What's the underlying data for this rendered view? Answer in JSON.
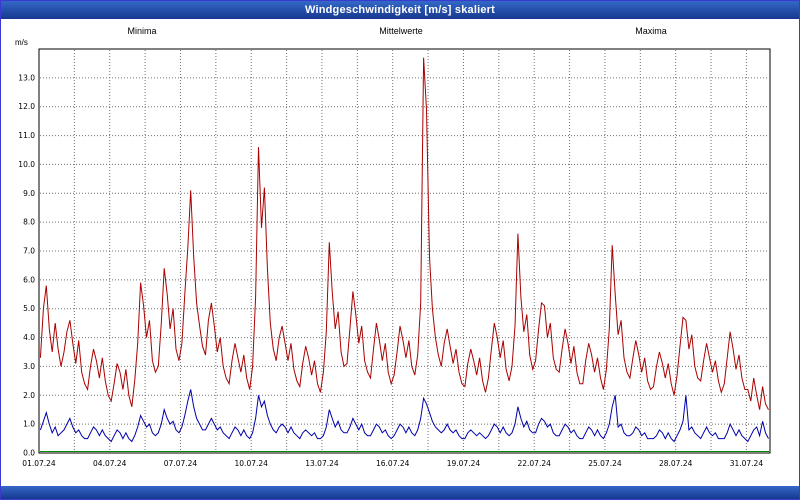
{
  "window": {
    "title": "Windgeschwindigkeit [m/s] skaliert"
  },
  "colors": {
    "titlebar": "#16388e",
    "maxima_line": "#aa0000",
    "mittelwerte_line": "#0000aa",
    "minima_line": "#008800",
    "grid": "#707070",
    "plot_border": "#000000"
  },
  "chart_data": {
    "type": "line",
    "title": "Windgeschwindigkeit [m/s] skaliert",
    "ylabel": "m/s",
    "ylim": [
      0,
      14
    ],
    "ytick_step": 1,
    "ytick_max": 13,
    "grid": true,
    "x_range_days": 31,
    "minor_grid_days": 1.5,
    "samples_per_day": 8,
    "xtick_days": [
      0,
      3,
      6,
      9,
      12,
      15,
      18,
      21,
      24,
      27,
      30
    ],
    "xtick_labels": [
      "01.07.24",
      "04.07.24",
      "07.07.24",
      "10.07.24",
      "13.07.24",
      "16.07.24",
      "19.07.24",
      "22.07.24",
      "25.07.24",
      "28.07.24",
      "31.07.24"
    ],
    "legend": [
      {
        "label": "Minima",
        "color": "#00a544"
      },
      {
        "label": "Mittelwerte",
        "color": "#0000bb"
      },
      {
        "label": "Maxima",
        "color": "#bb0000"
      }
    ],
    "legend_position": "top",
    "series": [
      {
        "name": "Maxima",
        "color": "#aa0000",
        "values": [
          3.3,
          5.0,
          5.8,
          4.3,
          3.5,
          4.5,
          3.6,
          3.0,
          3.5,
          4.2,
          4.6,
          3.8,
          3.1,
          3.9,
          2.8,
          2.4,
          2.2,
          3.0,
          3.6,
          3.2,
          2.6,
          3.3,
          2.5,
          2.0,
          1.8,
          2.4,
          3.1,
          2.8,
          2.2,
          2.9,
          2.0,
          1.6,
          2.5,
          3.8,
          5.9,
          5.1,
          4.0,
          4.6,
          3.2,
          2.8,
          3.0,
          4.5,
          6.4,
          5.5,
          4.3,
          5.0,
          3.6,
          3.2,
          3.8,
          5.5,
          7.1,
          9.1,
          6.8,
          5.2,
          4.4,
          3.7,
          3.4,
          4.6,
          5.2,
          4.4,
          3.5,
          4.0,
          3.0,
          2.6,
          2.4,
          3.2,
          3.8,
          3.3,
          2.8,
          3.4,
          2.6,
          2.2,
          3.0,
          5.4,
          10.6,
          7.8,
          9.2,
          6.4,
          4.5,
          3.6,
          3.2,
          4.0,
          4.4,
          3.8,
          3.2,
          3.8,
          2.9,
          2.5,
          2.3,
          3.1,
          3.7,
          3.3,
          2.7,
          3.2,
          2.4,
          2.1,
          2.8,
          4.2,
          7.3,
          5.6,
          4.3,
          4.9,
          3.5,
          3.0,
          3.1,
          4.3,
          5.6,
          4.8,
          3.8,
          4.4,
          3.2,
          2.8,
          2.6,
          3.6,
          4.5,
          3.9,
          3.2,
          3.8,
          2.8,
          2.4,
          2.7,
          3.5,
          4.4,
          3.9,
          3.3,
          3.9,
          3.0,
          2.7,
          3.4,
          5.2,
          13.7,
          11.9,
          6.8,
          5.0,
          4.0,
          3.4,
          3.0,
          3.8,
          4.3,
          3.7,
          3.1,
          3.6,
          2.8,
          2.4,
          2.3,
          3.1,
          3.6,
          3.2,
          2.7,
          3.3,
          2.5,
          2.1,
          2.6,
          3.6,
          4.5,
          4.0,
          3.3,
          3.9,
          2.9,
          2.5,
          3.0,
          4.4,
          7.6,
          5.4,
          4.2,
          4.8,
          3.4,
          2.9,
          3.2,
          4.3,
          5.2,
          5.1,
          4.0,
          4.5,
          3.3,
          2.9,
          2.8,
          3.6,
          4.3,
          3.8,
          3.1,
          3.7,
          2.8,
          2.4,
          2.4,
          3.2,
          3.8,
          3.4,
          2.8,
          3.3,
          2.6,
          2.2,
          2.9,
          4.3,
          7.2,
          5.5,
          4.1,
          4.6,
          3.3,
          2.8,
          2.6,
          3.3,
          3.9,
          3.4,
          2.8,
          3.3,
          2.5,
          2.2,
          2.3,
          3.0,
          3.5,
          3.1,
          2.6,
          3.1,
          2.4,
          2.0,
          2.7,
          3.7,
          4.7,
          4.6,
          3.6,
          4.1,
          3.0,
          2.6,
          2.5,
          3.2,
          3.8,
          3.3,
          2.8,
          3.2,
          2.5,
          2.1,
          2.4,
          3.3,
          4.2,
          3.6,
          2.9,
          3.4,
          2.6,
          2.2,
          2.2,
          1.8,
          2.6,
          2.0,
          1.5,
          2.3,
          1.7,
          1.5
        ]
      },
      {
        "name": "Mittelwerte",
        "color": "#0000aa",
        "values": [
          0.8,
          1.1,
          1.4,
          1.0,
          0.7,
          0.9,
          0.6,
          0.7,
          0.8,
          1.0,
          1.2,
          0.9,
          0.7,
          0.8,
          0.6,
          0.5,
          0.5,
          0.7,
          0.9,
          0.8,
          0.6,
          0.8,
          0.6,
          0.5,
          0.4,
          0.6,
          0.8,
          0.7,
          0.5,
          0.7,
          0.5,
          0.4,
          0.6,
          0.9,
          1.3,
          1.1,
          0.9,
          1.0,
          0.7,
          0.6,
          0.7,
          1.0,
          1.5,
          1.2,
          1.0,
          1.1,
          0.8,
          0.7,
          0.9,
          1.3,
          1.8,
          2.2,
          1.6,
          1.2,
          1.0,
          0.8,
          0.8,
          1.0,
          1.2,
          1.0,
          0.8,
          0.9,
          0.7,
          0.6,
          0.5,
          0.7,
          0.9,
          0.8,
          0.6,
          0.8,
          0.6,
          0.5,
          0.7,
          1.2,
          2.0,
          1.6,
          1.8,
          1.3,
          1.0,
          0.8,
          0.7,
          0.9,
          1.0,
          0.9,
          0.7,
          0.9,
          0.7,
          0.6,
          0.5,
          0.7,
          0.8,
          0.7,
          0.6,
          0.7,
          0.5,
          0.5,
          0.6,
          0.9,
          1.5,
          1.2,
          0.9,
          1.1,
          0.8,
          0.7,
          0.7,
          0.9,
          1.2,
          1.0,
          0.8,
          1.0,
          0.7,
          0.6,
          0.6,
          0.8,
          1.0,
          0.9,
          0.7,
          0.8,
          0.6,
          0.5,
          0.6,
          0.8,
          1.0,
          0.9,
          0.7,
          0.9,
          0.7,
          0.6,
          0.8,
          1.2,
          1.9,
          1.7,
          1.4,
          1.1,
          0.9,
          0.8,
          0.7,
          0.8,
          1.0,
          0.8,
          0.7,
          0.8,
          0.6,
          0.5,
          0.5,
          0.7,
          0.8,
          0.7,
          0.6,
          0.7,
          0.6,
          0.5,
          0.6,
          0.8,
          1.0,
          0.9,
          0.7,
          0.9,
          0.7,
          0.6,
          0.7,
          1.0,
          1.6,
          1.2,
          0.9,
          1.1,
          0.8,
          0.7,
          0.7,
          1.0,
          1.2,
          1.1,
          0.9,
          1.0,
          0.7,
          0.6,
          0.6,
          0.8,
          1.0,
          0.9,
          0.7,
          0.8,
          0.6,
          0.5,
          0.5,
          0.7,
          0.9,
          0.8,
          0.6,
          0.8,
          0.6,
          0.5,
          0.7,
          1.0,
          1.6,
          2.0,
          0.9,
          1.0,
          0.7,
          0.6,
          0.6,
          0.7,
          0.9,
          0.8,
          0.6,
          0.7,
          0.5,
          0.5,
          0.5,
          0.6,
          0.8,
          0.7,
          0.5,
          0.7,
          0.5,
          0.4,
          0.6,
          0.8,
          1.1,
          2.0,
          0.8,
          0.9,
          0.7,
          0.6,
          0.5,
          0.7,
          0.9,
          0.7,
          0.6,
          0.7,
          0.5,
          0.5,
          0.5,
          0.7,
          1.0,
          0.8,
          0.6,
          0.8,
          0.6,
          0.5,
          0.4,
          0.6,
          0.8,
          0.9,
          0.6,
          1.1,
          0.7,
          0.5
        ]
      },
      {
        "name": "Minima",
        "color": "#008800",
        "constant": 0.05
      }
    ]
  }
}
